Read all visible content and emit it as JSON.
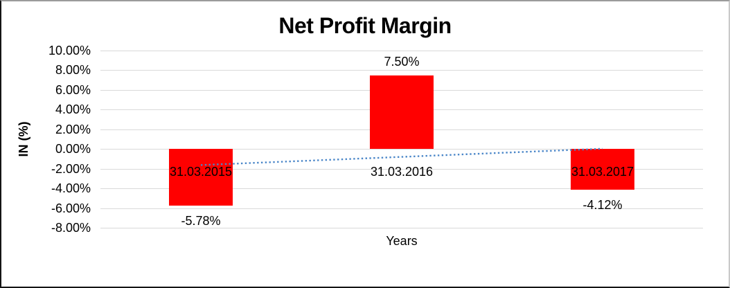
{
  "chart_data": {
    "type": "bar",
    "title": "Net Profit Margin",
    "xlabel": "Years",
    "ylabel": "IN (%)",
    "categories": [
      "31.03.2015",
      "31.03.2016",
      "31.03.2017"
    ],
    "values": [
      -5.78,
      7.5,
      -4.12
    ],
    "data_labels": [
      "-5.78%",
      "7.50%",
      "-4.12%"
    ],
    "ylim": [
      -8,
      10
    ],
    "ytick_values": [
      10,
      8,
      6,
      4,
      2,
      0,
      -2,
      -4,
      -6,
      -8
    ],
    "ytick_labels": [
      "10.00%",
      "8.00%",
      "6.00%",
      "4.00%",
      "2.00%",
      "0.00%",
      "-2.00%",
      "-4.00%",
      "-6.00%",
      "-8.00%"
    ],
    "grid": true,
    "legend_position": "none",
    "colors": {
      "bar": "#ff0000",
      "gridline": "#d9d9d9",
      "text": "#000000",
      "trendline": "#4a86c8",
      "background": "#ffffff"
    },
    "trendline": {
      "type": "linear",
      "style": "dotted",
      "start_value": -1.63,
      "end_value": 0.03
    }
  }
}
